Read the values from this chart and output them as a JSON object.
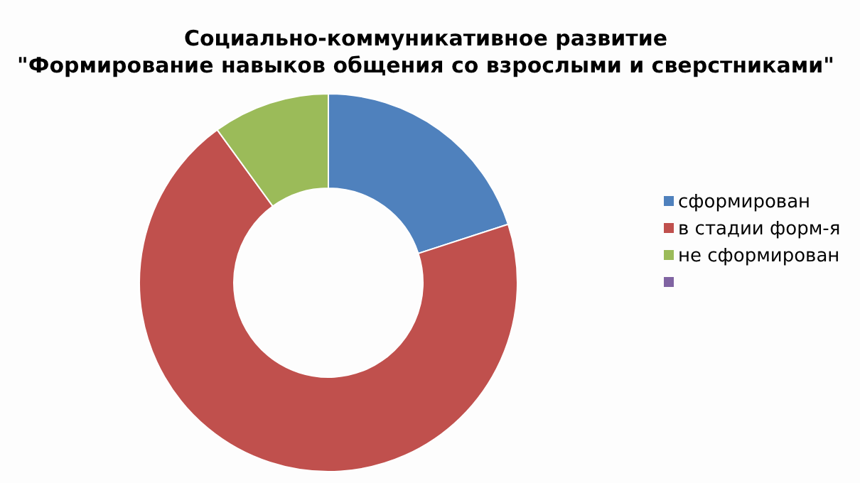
{
  "chart_data": {
    "type": "donut",
    "title": "Социально-коммуникативное развитие\n\"Формирование навыков общения со взрослыми и сверстниками\"",
    "categories": [
      "сформирован",
      "в стадии форм-я",
      "не сформирован",
      null
    ],
    "values": [
      20,
      70,
      10,
      0
    ],
    "colors": [
      "#4f81bd",
      "#c0504d",
      "#9bbb59",
      "#8064a2"
    ],
    "legend": "right"
  }
}
